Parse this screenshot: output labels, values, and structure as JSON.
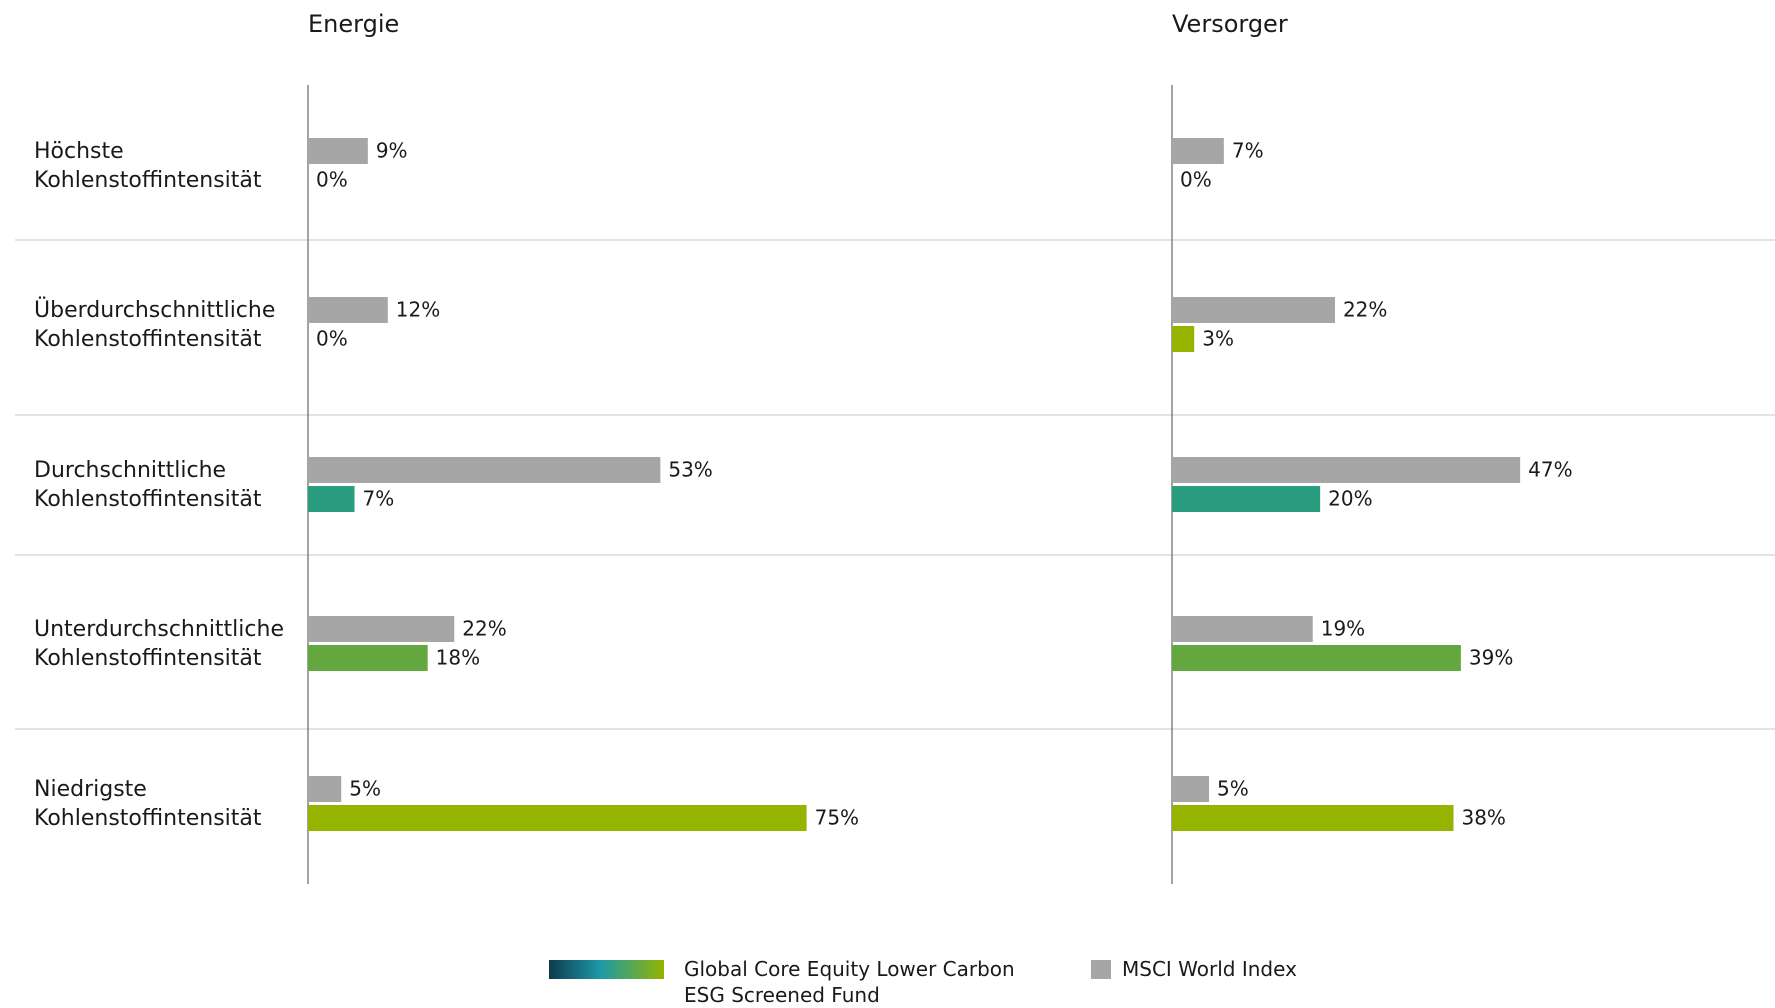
{
  "chart_data": {
    "type": "bar",
    "orientation": "horizontal",
    "categories": [
      "Höchste Kohlenstoffintensität",
      "Überdurchschnittliche Kohlenstoffintensität",
      "Durchschnittliche Kohlenstoffintensität",
      "Unterdurchschnittliche Kohlenstoffintensität",
      "Niedrigste Kohlenstoffintensität"
    ],
    "series": [
      {
        "name": "MSCI World Index",
        "color": "#a6a6a6"
      },
      {
        "name": "Global Core Equity Lower Carbon ESG Screened Fund"
      }
    ],
    "panels": [
      {
        "title": "Energie",
        "xlim": [
          0,
          125
        ],
        "values": [
          [
            9,
            12,
            53,
            22,
            5
          ],
          [
            0,
            0,
            7,
            18,
            75
          ]
        ],
        "value_labels": [
          [
            "9%",
            "12%",
            "53%",
            "22%",
            "5%"
          ],
          [
            "0%",
            "0%",
            "7%",
            "18%",
            "75%"
          ]
        ],
        "fund_colors": [
          "#1d9aa6",
          "#1d9aa6",
          "#2a9d80",
          "#62a83e",
          "#94b400"
        ]
      },
      {
        "title": "Versorger",
        "xlim": [
          0,
          81
        ],
        "values": [
          [
            7,
            22,
            47,
            19,
            5
          ],
          [
            0,
            3,
            20,
            39,
            38
          ]
        ],
        "value_labels": [
          [
            "7%",
            "22%",
            "47%",
            "19%",
            "5%"
          ],
          [
            "0%",
            "3%",
            "20%",
            "39%",
            "38%"
          ]
        ],
        "fund_colors": [
          "#94b400",
          "#94b400",
          "#2a9d80",
          "#62a83e",
          "#94b400"
        ]
      }
    ]
  }
}
